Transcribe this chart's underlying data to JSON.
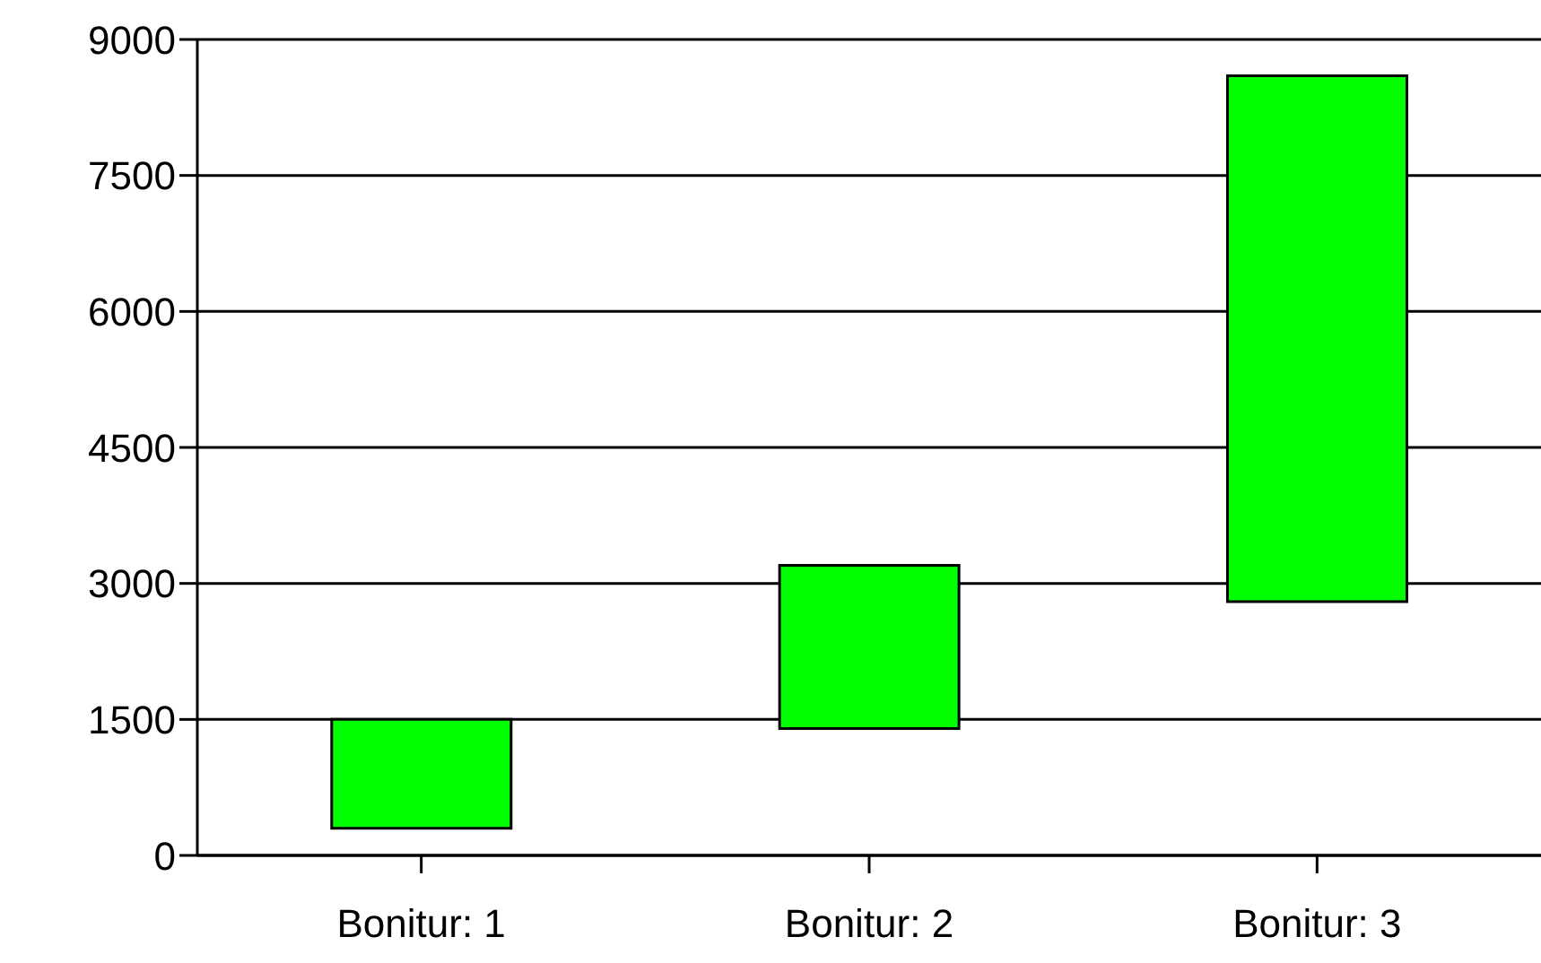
{
  "chart_data": {
    "type": "bar",
    "categories": [
      "Bonitur: 1",
      "Bonitur: 2",
      "Bonitur: 3"
    ],
    "base": [
      300,
      1400,
      2800
    ],
    "values": [
      1200,
      1800,
      5800
    ],
    "color": "#00ff00",
    "ylim": [
      0,
      9000
    ],
    "yticks": [
      0,
      1500,
      3000,
      4500,
      6000,
      7500,
      9000
    ],
    "grid": "y"
  }
}
